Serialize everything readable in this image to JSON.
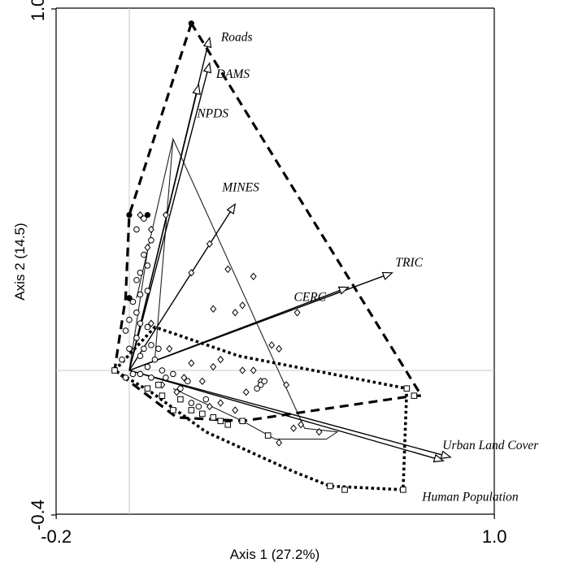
{
  "chart_data": {
    "type": "scatter",
    "title": "",
    "xlabel": "Axis 1 (27.2%)",
    "ylabel": "Axis 2 (14.5)",
    "xlim": [
      -0.2,
      1.0
    ],
    "ylim": [
      -0.4,
      1.0
    ],
    "x_tick_labels": [
      {
        "value": -0.2,
        "label": "-0.2"
      },
      {
        "value": 1.0,
        "label": "1.0"
      }
    ],
    "y_tick_labels": [
      {
        "value": -0.4,
        "label": "-0.4"
      },
      {
        "value": 1.0,
        "label": "1.0"
      }
    ],
    "reference_lines": {
      "x": 0.0,
      "y": 0.0
    },
    "vectors": [
      {
        "name": "Roads",
        "x": 0.22,
        "y": 0.92
      },
      {
        "name": "DAMS",
        "x": 0.22,
        "y": 0.85
      },
      {
        "name": "NPDS",
        "x": 0.19,
        "y": 0.79
      },
      {
        "name": "MINES",
        "x": 0.29,
        "y": 0.46
      },
      {
        "name": "TRIC",
        "x": 0.72,
        "y": 0.27
      },
      {
        "name": "CERC",
        "x": 0.6,
        "y": 0.23
      },
      {
        "name": "Urban Land Cover",
        "x": 0.88,
        "y": -0.24
      },
      {
        "name": "Human Population",
        "x": 0.86,
        "y": -0.25
      }
    ],
    "hull_dashed": [
      [
        0.17,
        0.96
      ],
      [
        0.0,
        0.43
      ],
      [
        -0.01,
        0.2
      ],
      [
        -0.03,
        0.07
      ],
      [
        -0.04,
        0.0
      ],
      [
        0.13,
        -0.13
      ],
      [
        0.31,
        -0.14
      ],
      [
        0.78,
        -0.07
      ],
      [
        0.8,
        -0.07
      ],
      [
        0.17,
        0.96
      ]
    ],
    "hull_dotted": [
      [
        -0.04,
        0.0
      ],
      [
        0.07,
        0.12
      ],
      [
        0.3,
        0.04
      ],
      [
        0.76,
        -0.05
      ],
      [
        0.75,
        -0.33
      ],
      [
        0.55,
        -0.32
      ],
      [
        0.45,
        -0.28
      ],
      [
        0.21,
        -0.17
      ],
      [
        0.06,
        -0.06
      ],
      [
        -0.04,
        0.0
      ]
    ],
    "thin_paths": [
      [
        [
          0.07,
          0.03
        ],
        [
          0.12,
          0.64
        ],
        [
          0.48,
          -0.16
        ],
        [
          0.57,
          -0.17
        ],
        [
          0.54,
          -0.19
        ]
      ],
      [
        [
          0.12,
          0.64
        ],
        [
          0.02,
          0.2
        ]
      ],
      [
        [
          0.0,
          0.0
        ],
        [
          0.05,
          0.33
        ]
      ],
      [
        [
          0.12,
          -0.05
        ],
        [
          0.31,
          -0.14
        ],
        [
          0.4,
          -0.19
        ],
        [
          0.54,
          -0.19
        ]
      ]
    ],
    "points": {
      "diamond": [
        [
          0.03,
          0.43
        ],
        [
          0.1,
          0.43
        ],
        [
          0.06,
          0.39
        ],
        [
          0.05,
          0.34
        ],
        [
          0.22,
          0.35
        ],
        [
          0.17,
          0.27
        ],
        [
          0.27,
          0.28
        ],
        [
          0.34,
          0.26
        ],
        [
          0.31,
          0.18
        ],
        [
          0.23,
          0.17
        ],
        [
          0.29,
          0.16
        ],
        [
          0.46,
          0.16
        ],
        [
          0.39,
          0.07
        ],
        [
          0.41,
          0.06
        ],
        [
          0.25,
          0.03
        ],
        [
          0.17,
          0.02
        ],
        [
          0.23,
          0.01
        ],
        [
          0.31,
          0.0
        ],
        [
          0.34,
          0.0
        ],
        [
          0.36,
          -0.03
        ],
        [
          0.43,
          -0.04
        ],
        [
          0.32,
          -0.06
        ],
        [
          0.25,
          -0.09
        ],
        [
          0.22,
          -0.1
        ],
        [
          0.29,
          -0.11
        ],
        [
          0.47,
          -0.15
        ],
        [
          0.45,
          -0.16
        ],
        [
          0.41,
          -0.2
        ],
        [
          0.52,
          -0.17
        ],
        [
          0.15,
          -0.02
        ],
        [
          0.13,
          -0.06
        ],
        [
          0.09,
          -0.04
        ],
        [
          0.2,
          -0.03
        ],
        [
          0.06,
          0.13
        ],
        [
          0.11,
          0.06
        ]
      ],
      "circle": [
        [
          0.02,
          0.39
        ],
        [
          0.04,
          0.42
        ],
        [
          0.06,
          0.36
        ],
        [
          0.04,
          0.32
        ],
        [
          0.03,
          0.27
        ],
        [
          0.05,
          0.29
        ],
        [
          0.02,
          0.25
        ],
        [
          0.0,
          0.2
        ],
        [
          0.01,
          0.19
        ],
        [
          0.03,
          0.21
        ],
        [
          0.05,
          0.22
        ],
        [
          0.02,
          0.16
        ],
        [
          0.0,
          0.14
        ],
        [
          0.03,
          0.13
        ],
        [
          -0.01,
          0.11
        ],
        [
          0.05,
          0.12
        ],
        [
          0.02,
          0.09
        ],
        [
          0.04,
          0.06
        ],
        [
          0.0,
          0.06
        ],
        [
          0.06,
          0.07
        ],
        [
          0.08,
          0.06
        ],
        [
          0.03,
          0.04
        ],
        [
          0.07,
          0.03
        ],
        [
          0.05,
          0.01
        ],
        [
          0.09,
          0.0
        ],
        [
          0.12,
          -0.01
        ],
        [
          0.1,
          -0.02
        ],
        [
          0.16,
          -0.03
        ],
        [
          0.14,
          -0.05
        ],
        [
          0.06,
          -0.02
        ],
        [
          0.03,
          -0.01
        ],
        [
          0.01,
          -0.01
        ],
        [
          -0.02,
          0.03
        ],
        [
          -0.01,
          -0.02
        ],
        [
          0.36,
          -0.04
        ],
        [
          0.37,
          -0.03
        ],
        [
          0.35,
          -0.05
        ],
        [
          0.21,
          -0.08
        ],
        [
          0.17,
          -0.09
        ],
        [
          0.19,
          -0.1
        ]
      ],
      "square": [
        [
          -0.04,
          0.0
        ],
        [
          0.05,
          -0.05
        ],
        [
          0.14,
          -0.08
        ],
        [
          0.2,
          -0.12
        ],
        [
          0.23,
          -0.13
        ],
        [
          0.27,
          -0.15
        ],
        [
          0.31,
          -0.14
        ],
        [
          0.38,
          -0.18
        ],
        [
          0.55,
          -0.32
        ],
        [
          0.59,
          -0.33
        ],
        [
          0.76,
          -0.05
        ],
        [
          0.78,
          -0.07
        ],
        [
          0.75,
          -0.33
        ],
        [
          0.09,
          -0.07
        ],
        [
          0.12,
          -0.11
        ],
        [
          0.17,
          -0.11
        ],
        [
          0.25,
          -0.14
        ],
        [
          0.08,
          -0.04
        ]
      ],
      "filled": [
        [
          0.17,
          0.96
        ],
        [
          0.05,
          0.43
        ],
        [
          0.0,
          0.43
        ],
        [
          0.0,
          0.2
        ]
      ]
    },
    "grid": false,
    "legend": "none"
  }
}
